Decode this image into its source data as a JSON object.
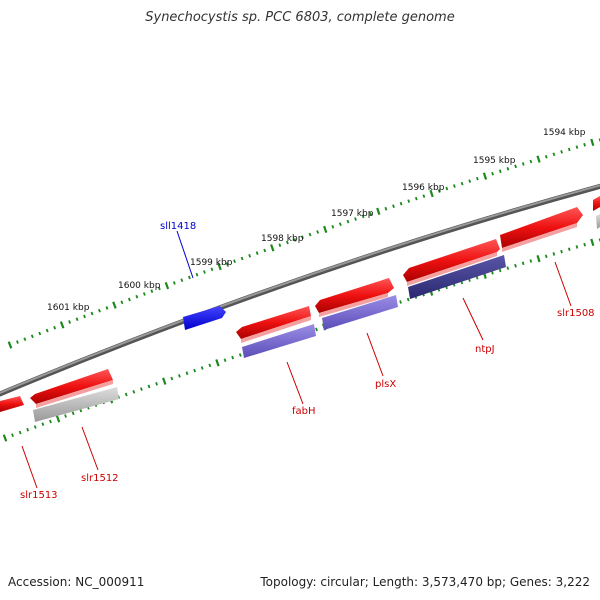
{
  "title": "Synechocystis sp. PCC 6803, complete genome",
  "footer": {
    "accession": "Accession: NC_000911",
    "topology": "Topology: circular; Length: 3,573,470 bp; Genes: 3,222"
  },
  "colors": {
    "backbone": "#777777",
    "forward_gene": "#ee1111",
    "reverse_gene_blue": "#2222ee",
    "reverse_gene_purple": "#7766cc",
    "reverse_gene_dark": "#3a3680",
    "reverse_gene_gray": "#b5b5b5",
    "tick": "#1b8a1b",
    "label_red": "#cc0000",
    "label_blue": "#0000cc"
  },
  "scale_labels": [
    "1594 kbp",
    "1595 kbp",
    "1596 kbp",
    "1597 kbp",
    "1598 kbp",
    "1599 kbp",
    "1600 kbp",
    "1601 kbp"
  ],
  "gene_labels": {
    "sll1418": "sll1418",
    "slr1508": "slr1508",
    "ntpJ": "ntpJ",
    "plsX": "plsX",
    "fabH": "fabH",
    "slr1512": "slr1512",
    "slr1513": "slr1513"
  }
}
